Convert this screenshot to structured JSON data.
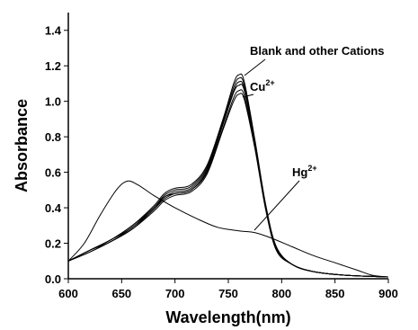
{
  "chart_data": {
    "type": "line",
    "title": "",
    "xlabel": "Wavelength(nm)",
    "ylabel": "Absorbance",
    "xlim": [
      600,
      900
    ],
    "ylim": [
      0.0,
      1.5
    ],
    "x_ticks": [
      "600",
      "650",
      "700",
      "750",
      "800",
      "850",
      "900"
    ],
    "y_ticks": [
      "0.0",
      "0.2",
      "0.4",
      "0.6",
      "0.8",
      "1.0",
      "1.2",
      "1.4"
    ],
    "grid": false,
    "annotations": {
      "blank": "Blank and other Cations",
      "cu_base": "Cu",
      "cu_sup": "2+",
      "hg_base": "Hg",
      "hg_sup": "2+"
    },
    "series": [
      {
        "values": [
          [
            600,
            0.1
          ],
          [
            620,
            0.16
          ],
          [
            640,
            0.22
          ],
          [
            660,
            0.3
          ],
          [
            680,
            0.41
          ],
          [
            690,
            0.48
          ],
          [
            700,
            0.51
          ],
          [
            715,
            0.53
          ],
          [
            730,
            0.64
          ],
          [
            745,
            0.9
          ],
          [
            755,
            1.1
          ],
          [
            760,
            1.15
          ],
          [
            765,
            1.11
          ],
          [
            775,
            0.78
          ],
          [
            785,
            0.42
          ],
          [
            795,
            0.18
          ],
          [
            810,
            0.08
          ],
          [
            830,
            0.04
          ],
          [
            860,
            0.02
          ],
          [
            900,
            0.01
          ]
        ]
      },
      {
        "values": [
          [
            600,
            0.1
          ],
          [
            620,
            0.16
          ],
          [
            640,
            0.22
          ],
          [
            660,
            0.3
          ],
          [
            680,
            0.4
          ],
          [
            690,
            0.47
          ],
          [
            700,
            0.5
          ],
          [
            715,
            0.52
          ],
          [
            730,
            0.63
          ],
          [
            745,
            0.89
          ],
          [
            755,
            1.08
          ],
          [
            760,
            1.13
          ],
          [
            765,
            1.09
          ],
          [
            775,
            0.77
          ],
          [
            785,
            0.41
          ],
          [
            795,
            0.18
          ],
          [
            810,
            0.08
          ],
          [
            830,
            0.04
          ],
          [
            860,
            0.02
          ],
          [
            900,
            0.01
          ]
        ]
      },
      {
        "values": [
          [
            600,
            0.1
          ],
          [
            620,
            0.16
          ],
          [
            640,
            0.22
          ],
          [
            660,
            0.29
          ],
          [
            680,
            0.4
          ],
          [
            690,
            0.46
          ],
          [
            700,
            0.49
          ],
          [
            715,
            0.51
          ],
          [
            730,
            0.62
          ],
          [
            745,
            0.88
          ],
          [
            755,
            1.06
          ],
          [
            760,
            1.11
          ],
          [
            765,
            1.07
          ],
          [
            775,
            0.76
          ],
          [
            785,
            0.41
          ],
          [
            795,
            0.17
          ],
          [
            810,
            0.08
          ],
          [
            830,
            0.04
          ],
          [
            860,
            0.02
          ],
          [
            900,
            0.01
          ]
        ]
      },
      {
        "values": [
          [
            600,
            0.1
          ],
          [
            620,
            0.16
          ],
          [
            640,
            0.21
          ],
          [
            660,
            0.29
          ],
          [
            680,
            0.39
          ],
          [
            690,
            0.46
          ],
          [
            700,
            0.48
          ],
          [
            715,
            0.5
          ],
          [
            730,
            0.61
          ],
          [
            745,
            0.87
          ],
          [
            755,
            1.05
          ],
          [
            760,
            1.09
          ],
          [
            765,
            1.06
          ],
          [
            775,
            0.75
          ],
          [
            785,
            0.4
          ],
          [
            795,
            0.17
          ],
          [
            810,
            0.08
          ],
          [
            830,
            0.04
          ],
          [
            860,
            0.02
          ],
          [
            900,
            0.01
          ]
        ]
      },
      {
        "values": [
          [
            600,
            0.1
          ],
          [
            620,
            0.15
          ],
          [
            640,
            0.21
          ],
          [
            660,
            0.28
          ],
          [
            680,
            0.39
          ],
          [
            690,
            0.45
          ],
          [
            700,
            0.48
          ],
          [
            715,
            0.5
          ],
          [
            730,
            0.6
          ],
          [
            745,
            0.85
          ],
          [
            755,
            1.02
          ],
          [
            760,
            1.06
          ],
          [
            765,
            1.03
          ],
          [
            775,
            0.74
          ],
          [
            785,
            0.4
          ],
          [
            795,
            0.17
          ],
          [
            810,
            0.08
          ],
          [
            830,
            0.04
          ],
          [
            860,
            0.02
          ],
          [
            900,
            0.01
          ]
        ]
      },
      {
        "values": [
          [
            600,
            0.1
          ],
          [
            620,
            0.15
          ],
          [
            640,
            0.21
          ],
          [
            660,
            0.28
          ],
          [
            680,
            0.38
          ],
          [
            690,
            0.44
          ],
          [
            700,
            0.47
          ],
          [
            715,
            0.49
          ],
          [
            730,
            0.59
          ],
          [
            745,
            0.84
          ],
          [
            755,
            1.0
          ],
          [
            760,
            1.04
          ],
          [
            765,
            1.01
          ],
          [
            775,
            0.73
          ],
          [
            785,
            0.39
          ],
          [
            795,
            0.16
          ],
          [
            810,
            0.08
          ],
          [
            830,
            0.04
          ],
          [
            860,
            0.02
          ],
          [
            900,
            0.01
          ]
        ]
      },
      {
        "values": [
          [
            600,
            0.1
          ],
          [
            615,
            0.2
          ],
          [
            630,
            0.36
          ],
          [
            645,
            0.5
          ],
          [
            655,
            0.55
          ],
          [
            665,
            0.53
          ],
          [
            680,
            0.47
          ],
          [
            700,
            0.4
          ],
          [
            720,
            0.34
          ],
          [
            740,
            0.29
          ],
          [
            760,
            0.27
          ],
          [
            775,
            0.26
          ],
          [
            790,
            0.23
          ],
          [
            810,
            0.18
          ],
          [
            830,
            0.13
          ],
          [
            850,
            0.09
          ],
          [
            870,
            0.05
          ],
          [
            885,
            0.02
          ],
          [
            900,
            0.01
          ]
        ]
      }
    ]
  }
}
